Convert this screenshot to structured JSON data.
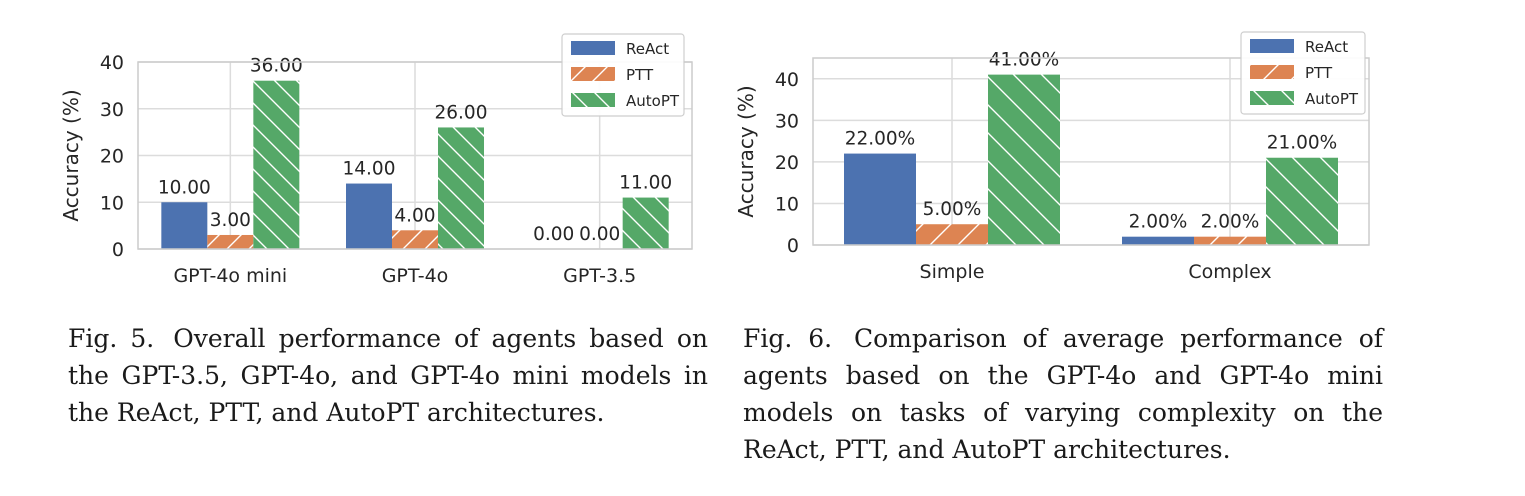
{
  "chart_data": [
    {
      "type": "bar",
      "categories": [
        "GPT-4o mini",
        "GPT-4o",
        "GPT-3.5"
      ],
      "series": [
        {
          "name": "ReAct",
          "values": [
            10.0,
            14.0,
            0.0
          ],
          "labels": [
            "10.00",
            "14.00",
            "0.00"
          ],
          "color": "#4c72b0",
          "hatch": "none"
        },
        {
          "name": "PTT",
          "values": [
            3.0,
            4.0,
            0.0
          ],
          "labels": [
            "3.00",
            "4.00",
            "0.00"
          ],
          "color": "#dd8452",
          "hatch": "/"
        },
        {
          "name": "AutoPT",
          "values": [
            36.0,
            26.0,
            11.0
          ],
          "labels": [
            "36.00",
            "26.00",
            "11.00"
          ],
          "color": "#55a868",
          "hatch": "\\"
        }
      ],
      "ylabel": "Accuracy (%)",
      "ylim": [
        0,
        40
      ],
      "yticks": [
        0,
        10,
        20,
        30,
        40
      ],
      "grid": true,
      "legend_position": "top-right"
    },
    {
      "type": "bar",
      "categories": [
        "Simple",
        "Complex"
      ],
      "series": [
        {
          "name": "ReAct",
          "values": [
            22.0,
            2.0
          ],
          "labels": [
            "22.00%",
            "2.00%"
          ],
          "color": "#4c72b0",
          "hatch": "none"
        },
        {
          "name": "PTT",
          "values": [
            5.0,
            2.0
          ],
          "labels": [
            "5.00%",
            "2.00%"
          ],
          "color": "#dd8452",
          "hatch": "/"
        },
        {
          "name": "AutoPT",
          "values": [
            41.0,
            21.0
          ],
          "labels": [
            "41.00%",
            "21.00%"
          ],
          "color": "#55a868",
          "hatch": "\\"
        }
      ],
      "ylabel": "Accuracy (%)",
      "ylim": [
        0,
        45
      ],
      "yticks": [
        0,
        10,
        20,
        30,
        40
      ],
      "grid": true,
      "legend_position": "top-right"
    }
  ],
  "captions": {
    "fig5": {
      "number": "Fig. 5.",
      "text": "Overall performance of agents based on the GPT-3.5, GPT-4o, and GPT-4o mini models in the ReAct, PTT, and AutoPT architectures."
    },
    "fig6": {
      "number": "Fig. 6.",
      "text": "Comparison of average performance of agents based on the GPT-4o and GPT-4o mini models on tasks of varying complexity on the ReAct, PTT, and AutoPT architectures."
    }
  }
}
